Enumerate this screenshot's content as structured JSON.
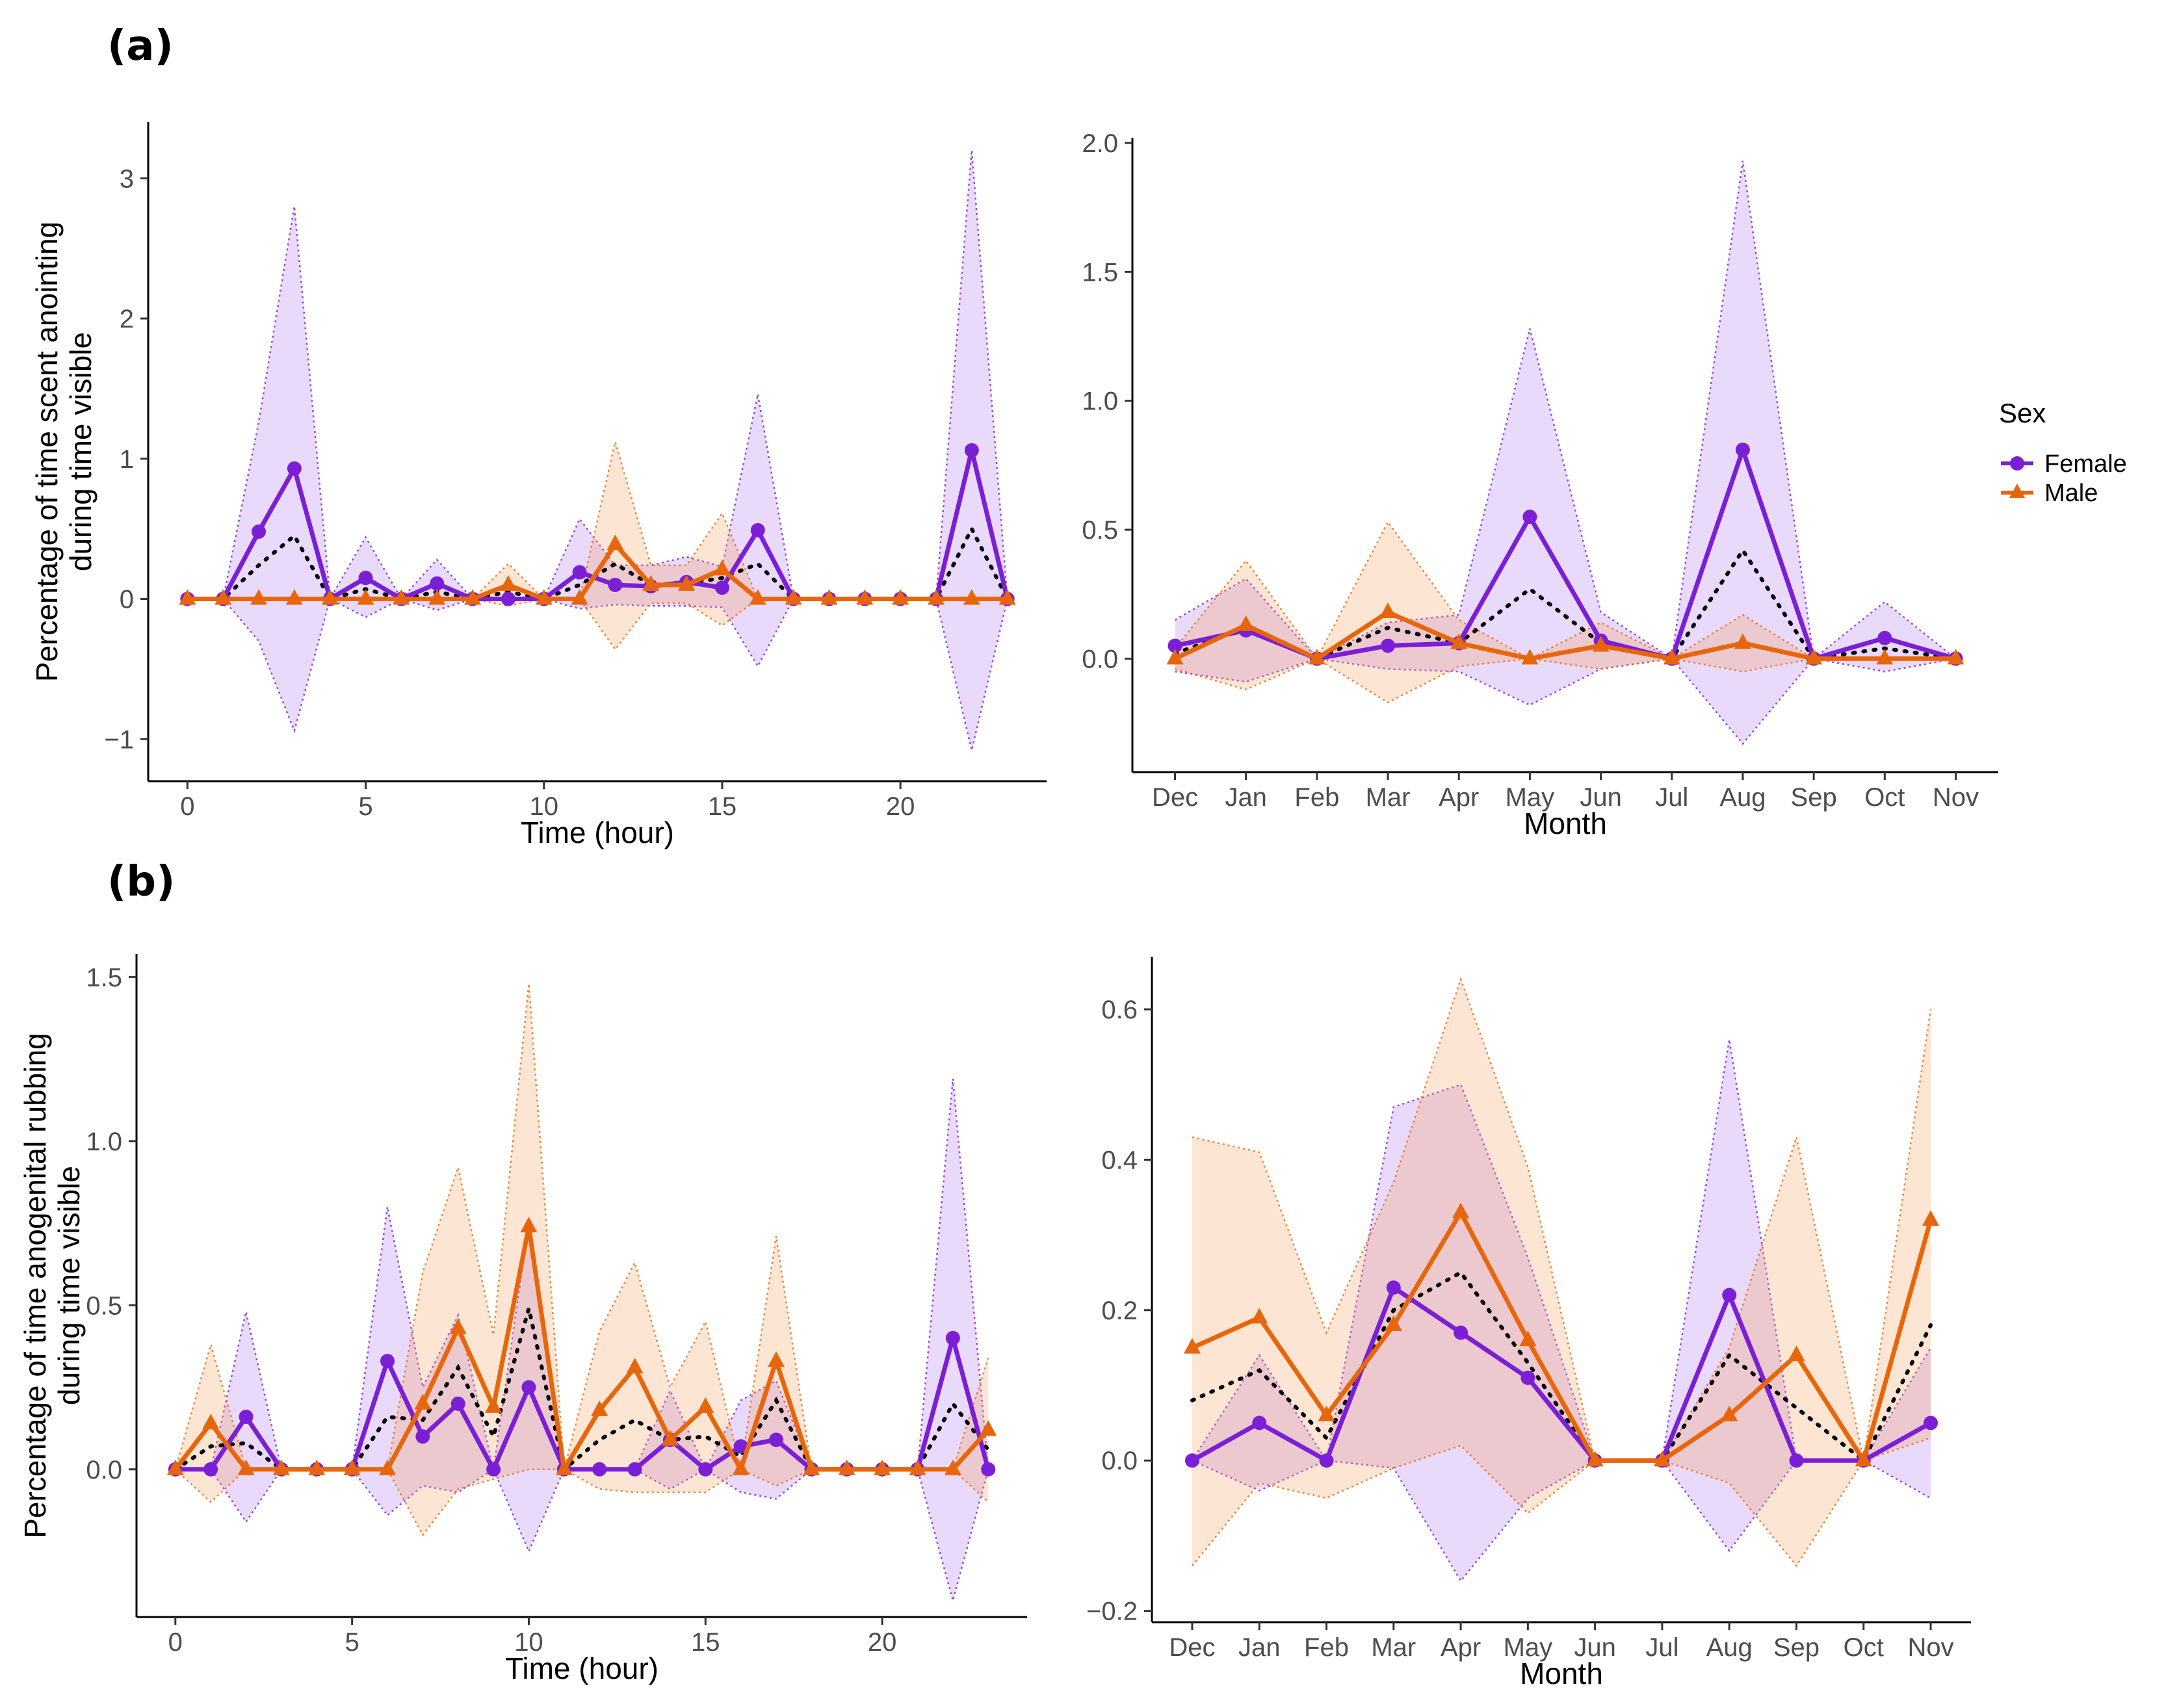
{
  "figure": {
    "labels": [
      "(a)",
      "(b)"
    ],
    "legend": {
      "title": "Sex",
      "entries": [
        {
          "name": "Female",
          "color": "#7B1FD6",
          "marker": "circle"
        },
        {
          "name": "Male",
          "color": "#E8660B",
          "marker": "triangle"
        }
      ]
    }
  },
  "chart_data": [
    {
      "id": "a-hour",
      "type": "line",
      "panel": "(a)",
      "xlabel": "Time (hour)",
      "ylabel": [
        "Percentage of time scent anointing",
        "during time visible"
      ],
      "x": [
        0,
        1,
        2,
        3,
        4,
        5,
        6,
        7,
        8,
        9,
        10,
        11,
        12,
        13,
        14,
        15,
        16,
        17,
        18,
        19,
        20,
        21,
        22,
        23
      ],
      "xlim": [
        -1.1,
        24.1
      ],
      "xticks": [
        0,
        5,
        10,
        15,
        20
      ],
      "xtick_labels": [
        "0",
        "5",
        "10",
        "15",
        "20"
      ],
      "ylim": [
        -1.3,
        3.4
      ],
      "yticks": [
        -1,
        0,
        1,
        2,
        3
      ],
      "ytick_labels": [
        "−1",
        "0",
        "1",
        "2",
        "3"
      ],
      "series": [
        {
          "name": "Female",
          "values": [
            0,
            0,
            0.48,
            0.93,
            0,
            0.15,
            0,
            0.11,
            0,
            0,
            0,
            0.19,
            0.1,
            0.09,
            0.12,
            0.08,
            0.49,
            0,
            0,
            0,
            0,
            0,
            1.06,
            0
          ],
          "lower": [
            0,
            0,
            -0.3,
            -0.94,
            0,
            -0.13,
            0,
            -0.08,
            0,
            0,
            0,
            -0.07,
            -0.04,
            -0.05,
            -0.05,
            -0.06,
            -0.48,
            0,
            0,
            0,
            0,
            0,
            -1.08,
            0
          ],
          "upper": [
            0,
            0,
            1.26,
            2.8,
            0,
            0.44,
            0,
            0.28,
            0,
            0,
            0,
            0.57,
            0.24,
            0.24,
            0.3,
            0.23,
            1.46,
            0,
            0,
            0,
            0,
            0,
            3.2,
            0
          ]
        },
        {
          "name": "Male",
          "values": [
            0,
            0,
            0,
            0,
            0,
            0,
            0,
            0,
            0,
            0.1,
            0,
            0,
            0.39,
            0.1,
            0.1,
            0.21,
            0,
            0,
            0,
            0,
            0,
            0,
            0,
            0
          ],
          "lower": [
            0,
            0,
            0,
            0,
            0,
            0,
            0,
            0,
            0,
            -0.05,
            0,
            0,
            -0.36,
            -0.03,
            -0.03,
            -0.19,
            0,
            0,
            0,
            0,
            0,
            0,
            0,
            0
          ],
          "upper": [
            0,
            0,
            0,
            0,
            0,
            0,
            0,
            0,
            0,
            0.25,
            0,
            0,
            1.12,
            0.24,
            0.24,
            0.61,
            0,
            0,
            0,
            0,
            0,
            0,
            0,
            0
          ]
        }
      ],
      "mean": [
        0,
        0,
        0.24,
        0.45,
        0,
        0.07,
        0,
        0.05,
        0,
        0.05,
        0,
        0.1,
        0.25,
        0.1,
        0.11,
        0.15,
        0.25,
        0,
        0,
        0,
        0,
        0,
        0.5,
        0
      ]
    },
    {
      "id": "a-month",
      "type": "line",
      "panel": "(a)",
      "xlabel": "Month",
      "ylabel": [],
      "x": [
        0,
        1,
        2,
        3,
        4,
        5,
        6,
        7,
        8,
        9,
        10,
        11
      ],
      "categories": [
        "Dec",
        "Jan",
        "Feb",
        "Mar",
        "Apr",
        "May",
        "Jun",
        "Jul",
        "Aug",
        "Sep",
        "Oct",
        "Nov"
      ],
      "xlim": [
        -0.6,
        11.6
      ],
      "xticks": [
        0,
        1,
        2,
        3,
        4,
        5,
        6,
        7,
        8,
        9,
        10,
        11
      ],
      "xtick_labels": [
        "Dec",
        "Jan",
        "Feb",
        "Mar",
        "Apr",
        "May",
        "Jun",
        "Jul",
        "Aug",
        "Sep",
        "Oct",
        "Nov"
      ],
      "ylim": [
        -0.44,
        2.02
      ],
      "yticks": [
        0,
        0.5,
        1,
        1.5,
        2
      ],
      "ytick_labels": [
        "0.0",
        "0.5",
        "1.0",
        "1.5",
        "2.0"
      ],
      "series": [
        {
          "name": "Female",
          "values": [
            0.05,
            0.11,
            0,
            0.05,
            0.06,
            0.55,
            0.07,
            0,
            0.81,
            0,
            0.08,
            0
          ],
          "lower": [
            -0.05,
            -0.09,
            0,
            -0.04,
            -0.05,
            -0.18,
            -0.04,
            0,
            -0.33,
            0,
            -0.05,
            0
          ],
          "upper": [
            0.15,
            0.31,
            0,
            0.14,
            0.17,
            1.28,
            0.18,
            0,
            1.93,
            0,
            0.22,
            0
          ]
        },
        {
          "name": "Male",
          "values": [
            0,
            0.13,
            0,
            0.18,
            0.06,
            0,
            0.05,
            0,
            0.06,
            0,
            0,
            0
          ],
          "lower": [
            -0.04,
            -0.12,
            0,
            -0.17,
            -0.03,
            0,
            -0.04,
            0,
            -0.05,
            0,
            0,
            0
          ],
          "upper": [
            0.04,
            0.38,
            0,
            0.53,
            0.15,
            0,
            0.14,
            0,
            0.17,
            0,
            0,
            0
          ]
        }
      ],
      "mean": [
        0.02,
        0.12,
        0,
        0.12,
        0.06,
        0.27,
        0.06,
        0,
        0.42,
        0,
        0.04,
        0
      ]
    },
    {
      "id": "b-hour",
      "type": "line",
      "panel": "(b)",
      "xlabel": "Time (hour)",
      "ylabel": [
        "Percentage of time anogenital rubbing",
        "during time visible"
      ],
      "x": [
        0,
        1,
        2,
        3,
        4,
        5,
        6,
        7,
        8,
        9,
        10,
        11,
        12,
        13,
        14,
        15,
        16,
        17,
        18,
        19,
        20,
        21,
        22,
        23
      ],
      "xlim": [
        -1.1,
        24.1
      ],
      "xticks": [
        0,
        5,
        10,
        15,
        20
      ],
      "xtick_labels": [
        "0",
        "5",
        "10",
        "15",
        "20"
      ],
      "ylim": [
        -0.45,
        1.57
      ],
      "yticks": [
        0,
        0.5,
        1,
        1.5
      ],
      "ytick_labels": [
        "0.0",
        "0.5",
        "1.0",
        "1.5"
      ],
      "series": [
        {
          "name": "Female",
          "values": [
            0,
            0,
            0.16,
            0,
            0,
            0,
            0.33,
            0.1,
            0.2,
            0,
            0.25,
            0,
            0,
            0,
            0.09,
            0,
            0.07,
            0.09,
            0,
            0,
            0,
            0,
            0.4,
            0
          ],
          "lower": [
            0,
            0,
            -0.16,
            0,
            0,
            0,
            -0.14,
            -0.05,
            -0.07,
            0,
            -0.25,
            0,
            0,
            0,
            -0.06,
            0,
            -0.07,
            -0.09,
            0,
            0,
            0,
            0,
            -0.4,
            0
          ],
          "upper": [
            0,
            0,
            0.48,
            0,
            0,
            0,
            0.8,
            0.25,
            0.47,
            0,
            0.75,
            0,
            0,
            0,
            0.24,
            0,
            0.21,
            0.27,
            0,
            0,
            0,
            0,
            1.19,
            0
          ],
          "upper_edge_line": [
            0,
            0,
            0.48,
            0,
            0,
            0,
            0.8,
            0.25,
            0.47,
            0,
            0.75,
            0,
            0,
            0,
            0.24,
            0,
            0.21,
            0.27,
            0,
            0,
            0,
            0,
            1.19,
            0
          ]
        },
        {
          "name": "Male",
          "values": [
            0,
            0.14,
            0,
            0,
            0,
            0,
            0,
            0.2,
            0.43,
            0.19,
            0.74,
            0,
            0.18,
            0.31,
            0.09,
            0.19,
            0,
            0.33,
            0,
            0,
            0,
            0,
            0,
            0.12
          ],
          "lower": [
            0,
            -0.1,
            0,
            0,
            0,
            0,
            0,
            -0.2,
            -0.06,
            -0.03,
            0,
            0,
            -0.06,
            -0.07,
            -0.07,
            -0.07,
            0,
            -0.05,
            0,
            0,
            0,
            0,
            0,
            -0.1
          ],
          "upper": [
            0,
            0.38,
            0,
            0,
            0,
            0,
            0,
            0.6,
            0.92,
            0.41,
            1.48,
            0,
            0.42,
            0.63,
            0.25,
            0.45,
            0,
            0.71,
            0,
            0,
            0,
            0,
            0,
            0.34
          ]
        }
      ],
      "mean": [
        0,
        0.07,
        0.08,
        0,
        0,
        0,
        0.16,
        0.15,
        0.31,
        0.1,
        0.49,
        0,
        0.09,
        0.15,
        0.09,
        0.1,
        0.04,
        0.21,
        0,
        0,
        0,
        0,
        0.2,
        0.06
      ]
    },
    {
      "id": "b-month",
      "type": "line",
      "panel": "(b)",
      "xlabel": "Month",
      "ylabel": [],
      "x": [
        0,
        1,
        2,
        3,
        4,
        5,
        6,
        7,
        8,
        9,
        10,
        11
      ],
      "categories": [
        "Dec",
        "Jan",
        "Feb",
        "Mar",
        "Apr",
        "May",
        "Jun",
        "Jul",
        "Aug",
        "Sep",
        "Oct",
        "Nov"
      ],
      "xlim": [
        -0.6,
        11.6
      ],
      "xticks": [
        0,
        1,
        2,
        3,
        4,
        5,
        6,
        7,
        8,
        9,
        10,
        11
      ],
      "xtick_labels": [
        "Dec",
        "Jan",
        "Feb",
        "Mar",
        "Apr",
        "May",
        "Jun",
        "Jul",
        "Aug",
        "Sep",
        "Oct",
        "Nov"
      ],
      "ylim": [
        -0.215,
        0.67
      ],
      "yticks": [
        -0.2,
        0,
        0.2,
        0.4,
        0.6
      ],
      "ytick_labels": [
        "−0.2",
        "0.0",
        "0.2",
        "0.4",
        "0.6"
      ],
      "series": [
        {
          "name": "Female",
          "values": [
            0,
            0.05,
            0,
            0.23,
            0.17,
            0.11,
            0,
            0,
            0.22,
            0,
            0,
            0.05
          ],
          "lower": [
            0,
            -0.04,
            0,
            -0.01,
            -0.16,
            -0.05,
            0,
            0,
            -0.12,
            0,
            0,
            -0.05
          ],
          "upper": [
            0,
            0.14,
            0,
            0.47,
            0.5,
            0.27,
            0,
            0,
            0.56,
            0,
            0,
            0.15
          ]
        },
        {
          "name": "Male",
          "values": [
            0.15,
            0.19,
            0.06,
            0.18,
            0.33,
            0.16,
            0,
            0,
            0.06,
            0.14,
            0,
            0.32
          ],
          "lower": [
            -0.14,
            -0.03,
            -0.05,
            -0.01,
            0.02,
            -0.07,
            0,
            0,
            -0.03,
            -0.14,
            0,
            0.03
          ],
          "upper": [
            0.43,
            0.41,
            0.17,
            0.37,
            0.64,
            0.39,
            0,
            0,
            0.15,
            0.43,
            0,
            0.6
          ]
        }
      ],
      "mean": [
        0.08,
        0.12,
        0.03,
        0.2,
        0.25,
        0.13,
        0,
        0,
        0.14,
        0.07,
        0,
        0.18
      ]
    }
  ]
}
